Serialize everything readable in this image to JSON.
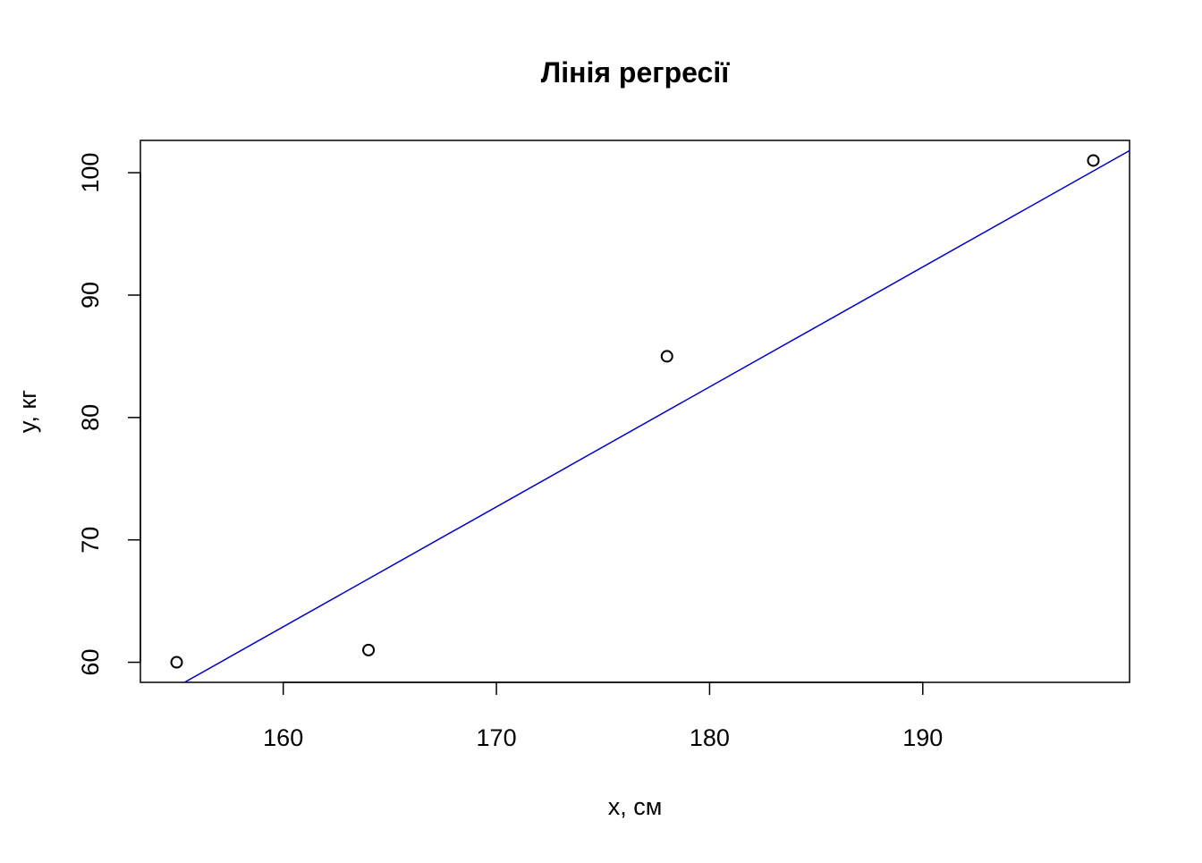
{
  "chart_data": {
    "type": "scatter",
    "title": "Лінія регресії",
    "xlabel": "x, см",
    "ylabel": "y, кг",
    "xlim": [
      153.3,
      199.7
    ],
    "ylim": [
      58.36,
      102.64
    ],
    "xticks": [
      "160",
      "170",
      "180",
      "190"
    ],
    "yticks": [
      "60",
      "70",
      "80",
      "90",
      "100"
    ],
    "grid": false,
    "points": [
      {
        "x": 155,
        "y": 60
      },
      {
        "x": 164,
        "y": 61
      },
      {
        "x": 178,
        "y": 85
      },
      {
        "x": 198,
        "y": 101
      }
    ],
    "regression_line": {
      "intercept": -93.9,
      "slope": 0.98,
      "color": "#0000CD"
    },
    "point_color": "#000000"
  }
}
